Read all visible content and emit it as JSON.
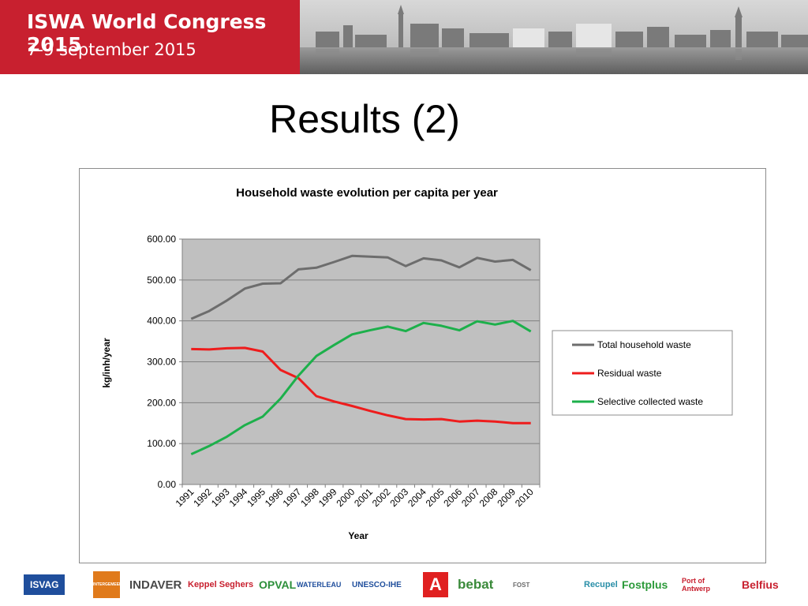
{
  "banner": {
    "title": "ISWA World Congress 2015",
    "subtitle": "7-9 september 2015"
  },
  "slide": {
    "title": "Results (2)"
  },
  "colors": {
    "banner_red": "#c8202f",
    "plot_area": "#c0c0c0",
    "total": "#6d6d6d",
    "residual": "#ee1c1c",
    "selective": "#1db04b"
  },
  "chart_data": {
    "type": "line",
    "title": "Household waste evolution per capita per year",
    "xlabel": "Year",
    "ylabel": "kg/inh/year",
    "x": [
      "1991",
      "1992",
      "1993",
      "1994",
      "1995",
      "1996",
      "1997",
      "1998",
      "1999",
      "2000",
      "2001",
      "2002",
      "2003",
      "2004",
      "2005",
      "2006",
      "2007",
      "2008",
      "2009",
      "2010"
    ],
    "ylim": [
      0,
      600
    ],
    "yticks": [
      "0.00",
      "100.00",
      "200.00",
      "300.00",
      "400.00",
      "500.00",
      "600.00"
    ],
    "grid": true,
    "legend": "right",
    "series": [
      {
        "name": "Total household waste",
        "color": "#6d6d6d",
        "values": [
          405,
          424,
          450,
          479,
          491,
          492,
          526,
          530,
          544,
          559,
          557,
          555,
          534,
          553,
          548,
          531,
          554,
          545,
          549,
          524
        ]
      },
      {
        "name": "Residual waste",
        "color": "#ee1c1c",
        "values": [
          331,
          330,
          333,
          334,
          325,
          280,
          260,
          216,
          203,
          192,
          180,
          169,
          160,
          159,
          160,
          154,
          156,
          154,
          150,
          150
        ]
      },
      {
        "name": "Selective collected waste",
        "color": "#1db04b",
        "values": [
          74,
          94,
          117,
          145,
          166,
          210,
          266,
          314,
          341,
          367,
          377,
          386,
          375,
          395,
          388,
          377,
          399,
          391,
          400,
          374
        ]
      }
    ]
  },
  "sponsors": [
    "ISVAG",
    "INTERGEMEENTELIJKE",
    "INDAVER",
    "Keppel Seghers",
    "OPVAL",
    "WATERLEAU",
    "UNESCO-IHE",
    "A",
    "bebat",
    "FOST",
    "Recupel",
    "Fostplus",
    "Port of Antwerp",
    "Belfius"
  ]
}
